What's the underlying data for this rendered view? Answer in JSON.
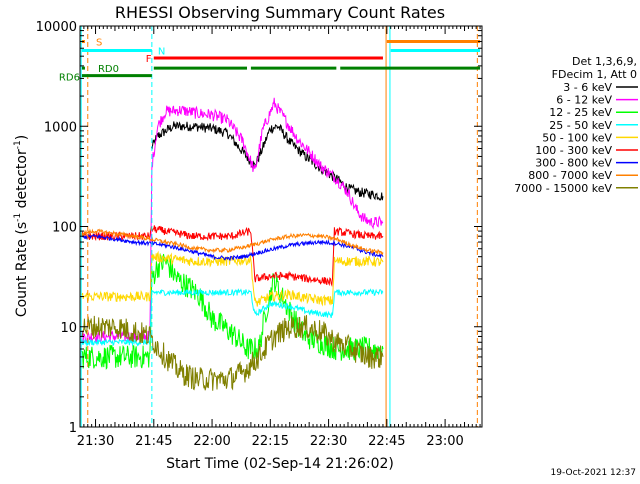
{
  "chart_data": {
    "type": "line",
    "title": "RHESSI Observing Summary Count Rates",
    "xlabel": "Start Time (02-Sep-14 21:26:02)",
    "ylabel_main": "Count Rate (s",
    "ylabel_sup1": "-1",
    "ylabel_mid": " detector",
    "ylabel_sup2": "-1",
    "ylabel_end": ")",
    "timestamp": "19-Oct-2021 12:37",
    "x_range_min": [
      26.0,
      129.5
    ],
    "y_range": [
      1,
      10000
    ],
    "y_scale": "log",
    "x_ticks": [
      {
        "min": 30,
        "label": "21:30"
      },
      {
        "min": 45,
        "label": "21:45"
      },
      {
        "min": 60,
        "label": "22:00"
      },
      {
        "min": 75,
        "label": "22:15"
      },
      {
        "min": 90,
        "label": "22:30"
      },
      {
        "min": 105,
        "label": "22:45"
      },
      {
        "min": 120,
        "label": "23:00"
      }
    ],
    "y_ticks": [
      {
        "value": 1,
        "label": "1"
      },
      {
        "value": 10,
        "label": "10"
      },
      {
        "value": 100,
        "label": "100"
      },
      {
        "value": 1000,
        "label": "1000"
      },
      {
        "value": 10000,
        "label": "10000"
      }
    ],
    "legend_header": [
      "Det 1,3,6,9,",
      "FDecim 1, Att 0"
    ],
    "legend_position": "right",
    "series": [
      {
        "name": "3 - 6 keV",
        "color": "#000000",
        "points": [
          [
            44.4,
            600
          ],
          [
            46,
            800
          ],
          [
            50,
            1000
          ],
          [
            55,
            1000
          ],
          [
            60,
            950
          ],
          [
            64,
            850
          ],
          [
            68,
            550
          ],
          [
            71,
            400
          ],
          [
            73,
            600
          ],
          [
            75,
            950
          ],
          [
            77,
            1000
          ],
          [
            80,
            700
          ],
          [
            84,
            500
          ],
          [
            88,
            380
          ],
          [
            92,
            300
          ],
          [
            95,
            240
          ],
          [
            98,
            220
          ],
          [
            101,
            210
          ],
          [
            104,
            200
          ]
        ]
      },
      {
        "name": "6 - 12 keV",
        "color": "#ff00ff",
        "points": [
          [
            26.5,
            8
          ],
          [
            40,
            8
          ],
          [
            44,
            8
          ],
          [
            44.5,
            400
          ],
          [
            46,
            1000
          ],
          [
            48,
            1400
          ],
          [
            52,
            1450
          ],
          [
            56,
            1350
          ],
          [
            60,
            1300
          ],
          [
            64,
            1150
          ],
          [
            68,
            700
          ],
          [
            71,
            350
          ],
          [
            73,
            900
          ],
          [
            76,
            1700
          ],
          [
            78,
            1300
          ],
          [
            82,
            750
          ],
          [
            86,
            500
          ],
          [
            88,
            400
          ],
          [
            92,
            300
          ],
          [
            95,
            220
          ],
          [
            97,
            150
          ],
          [
            99,
            120
          ],
          [
            101,
            110
          ],
          [
            104,
            110
          ]
        ]
      },
      {
        "name": "12 - 25 keV",
        "color": "#00ff00",
        "points": [
          [
            26.5,
            5
          ],
          [
            40,
            5
          ],
          [
            44,
            5
          ],
          [
            44.5,
            30
          ],
          [
            46,
            40
          ],
          [
            48,
            45
          ],
          [
            51,
            30
          ],
          [
            54,
            25
          ],
          [
            57,
            20
          ],
          [
            60,
            12
          ],
          [
            63,
            10
          ],
          [
            66,
            8
          ],
          [
            69,
            6
          ],
          [
            72,
            6
          ],
          [
            74,
            15
          ],
          [
            76,
            30
          ],
          [
            78,
            20
          ],
          [
            81,
            12
          ],
          [
            84,
            8
          ],
          [
            88,
            7
          ],
          [
            92,
            6
          ],
          [
            96,
            6
          ],
          [
            100,
            6
          ],
          [
            104,
            6
          ]
        ]
      },
      {
        "name": "25 - 50 keV",
        "color": "#00ffff",
        "points": [
          [
            26.5,
            7
          ],
          [
            44,
            7
          ],
          [
            44.5,
            22
          ],
          [
            50,
            22
          ],
          [
            60,
            22
          ],
          [
            70,
            22
          ],
          [
            71,
            13
          ],
          [
            75,
            17
          ],
          [
            80,
            16
          ],
          [
            85,
            14
          ],
          [
            91,
            13
          ],
          [
            91.5,
            22
          ],
          [
            100,
            22
          ],
          [
            104,
            22
          ]
        ]
      },
      {
        "name": "50 - 100 keV",
        "color": "#ffd800",
        "points": [
          [
            26.5,
            20
          ],
          [
            44,
            20
          ],
          [
            44.5,
            50
          ],
          [
            55,
            45
          ],
          [
            65,
            45
          ],
          [
            70,
            47
          ],
          [
            71,
            17
          ],
          [
            75,
            20
          ],
          [
            80,
            21
          ],
          [
            85,
            19
          ],
          [
            91,
            18
          ],
          [
            91.5,
            45
          ],
          [
            100,
            45
          ],
          [
            104,
            44
          ]
        ]
      },
      {
        "name": "100 - 300 keV",
        "color": "#ff0000",
        "points": [
          [
            26.5,
            80
          ],
          [
            44,
            80
          ],
          [
            44.5,
            95
          ],
          [
            55,
            80
          ],
          [
            65,
            80
          ],
          [
            70,
            90
          ],
          [
            71,
            30
          ],
          [
            75,
            32
          ],
          [
            80,
            32
          ],
          [
            85,
            30
          ],
          [
            91,
            28
          ],
          [
            91.5,
            90
          ],
          [
            100,
            80
          ],
          [
            104,
            80
          ]
        ]
      },
      {
        "name": "300 - 800 keV",
        "color": "#0000ff",
        "points": [
          [
            26.5,
            78
          ],
          [
            30,
            80
          ],
          [
            35,
            75
          ],
          [
            40,
            70
          ],
          [
            44,
            68
          ],
          [
            48,
            65
          ],
          [
            52,
            60
          ],
          [
            56,
            55
          ],
          [
            60,
            50
          ],
          [
            64,
            48
          ],
          [
            68,
            50
          ],
          [
            72,
            55
          ],
          [
            76,
            60
          ],
          [
            80,
            65
          ],
          [
            84,
            68
          ],
          [
            88,
            70
          ],
          [
            92,
            68
          ],
          [
            96,
            62
          ],
          [
            100,
            55
          ],
          [
            104,
            50
          ]
        ]
      },
      {
        "name": "800 - 7000 keV",
        "color": "#ff8000",
        "points": [
          [
            26.5,
            85
          ],
          [
            30,
            90
          ],
          [
            35,
            85
          ],
          [
            40,
            80
          ],
          [
            44,
            75
          ],
          [
            48,
            70
          ],
          [
            52,
            65
          ],
          [
            56,
            60
          ],
          [
            60,
            58
          ],
          [
            64,
            58
          ],
          [
            68,
            62
          ],
          [
            72,
            68
          ],
          [
            76,
            75
          ],
          [
            80,
            80
          ],
          [
            84,
            82
          ],
          [
            88,
            80
          ],
          [
            92,
            75
          ],
          [
            96,
            65
          ],
          [
            100,
            58
          ],
          [
            104,
            55
          ]
        ]
      },
      {
        "name": "7000 - 15000 keV",
        "color": "#808000",
        "points": [
          [
            26.5,
            10
          ],
          [
            30,
            10
          ],
          [
            35,
            10
          ],
          [
            40,
            9
          ],
          [
            44,
            8
          ],
          [
            48,
            5
          ],
          [
            52,
            3.5
          ],
          [
            56,
            3
          ],
          [
            60,
            3
          ],
          [
            64,
            3
          ],
          [
            68,
            3.5
          ],
          [
            72,
            5
          ],
          [
            76,
            8
          ],
          [
            80,
            10
          ],
          [
            84,
            10
          ],
          [
            88,
            9
          ],
          [
            92,
            7
          ],
          [
            96,
            6
          ],
          [
            100,
            5
          ],
          [
            104,
            5
          ]
        ]
      }
    ],
    "state_bars": [
      {
        "label": "S",
        "color": "#ff8000",
        "segments": [
          [
            26.5,
            26.5
          ],
          [
            105,
            129
          ]
        ],
        "y_value": 7000
      },
      {
        "label": "N",
        "color": "#00ffff",
        "segments": [
          [
            26.5,
            44.5
          ],
          [
            106,
            129
          ]
        ],
        "y_value": 5700
      },
      {
        "label": "F",
        "color": "#ff0000",
        "segments": [
          [
            45,
            104
          ]
        ],
        "y_value": 4800
      },
      {
        "label": "RD0",
        "color": "#008000",
        "segments": [
          [
            26.5,
            26.5
          ],
          [
            45,
            69
          ],
          [
            70,
            92
          ],
          [
            93,
            129
          ]
        ],
        "y_value": 3800
      },
      {
        "label": "RD6",
        "color": "#008000",
        "segments": [
          [
            26.5,
            44.5
          ]
        ],
        "y_value": 3200
      }
    ],
    "vertical_lines": [
      {
        "min": 26.3,
        "color": "#00ffff",
        "style": "solid"
      },
      {
        "min": 28.0,
        "color": "#ff8000",
        "style": "dashed"
      },
      {
        "min": 44.5,
        "color": "#00ffff",
        "style": "dashed"
      },
      {
        "min": 104.8,
        "color": "#ff8000",
        "style": "solid"
      },
      {
        "min": 105.8,
        "color": "#00ffff",
        "style": "solid"
      },
      {
        "min": 128.3,
        "color": "#ff8000",
        "style": "dashed"
      }
    ]
  }
}
